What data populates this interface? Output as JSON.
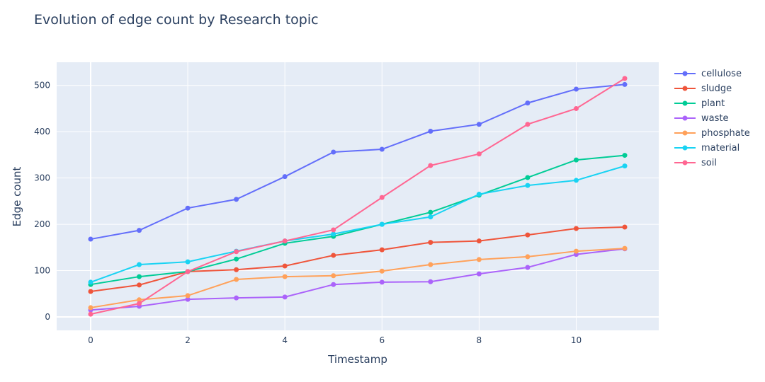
{
  "chart_data": {
    "type": "line",
    "title": "Evolution of edge count by Research topic",
    "xlabel": "Timestamp",
    "ylabel": "Edge count",
    "xlim": [
      -0.7,
      11.7
    ],
    "ylim": [
      -29,
      550
    ],
    "xticks": [
      0,
      2,
      4,
      6,
      8,
      10
    ],
    "yticks": [
      0,
      100,
      200,
      300,
      400,
      500
    ],
    "grid": true,
    "legend_position": "right",
    "x": [
      0,
      1,
      2,
      3,
      4,
      5,
      6,
      7,
      8,
      9,
      10,
      11
    ],
    "series": [
      {
        "name": "cellulose",
        "color": "#636efa",
        "values": [
          168,
          187,
          235,
          254,
          303,
          356,
          362,
          401,
          416,
          462,
          492,
          502
        ]
      },
      {
        "name": "sludge",
        "color": "#ef553b",
        "values": [
          55,
          69,
          98,
          102,
          110,
          133,
          145,
          161,
          164,
          177,
          191,
          194
        ]
      },
      {
        "name": "plant",
        "color": "#00cc96",
        "values": [
          70,
          87,
          98,
          125,
          159,
          174,
          200,
          226,
          263,
          301,
          339,
          349
        ]
      },
      {
        "name": "waste",
        "color": "#ab63fa",
        "values": [
          15,
          23,
          38,
          41,
          43,
          70,
          75,
          76,
          93,
          107,
          135,
          147
        ]
      },
      {
        "name": "phosphate",
        "color": "#ffa15a",
        "values": [
          20,
          37,
          46,
          81,
          87,
          89,
          99,
          113,
          124,
          130,
          142,
          148
        ]
      },
      {
        "name": "material",
        "color": "#19d3f3",
        "values": [
          75,
          113,
          119,
          142,
          164,
          179,
          200,
          216,
          265,
          284,
          295,
          326
        ]
      },
      {
        "name": "soil",
        "color": "#ff6692",
        "values": [
          6,
          29,
          98,
          141,
          164,
          188,
          258,
          327,
          352,
          416,
          450,
          515
        ]
      }
    ]
  }
}
